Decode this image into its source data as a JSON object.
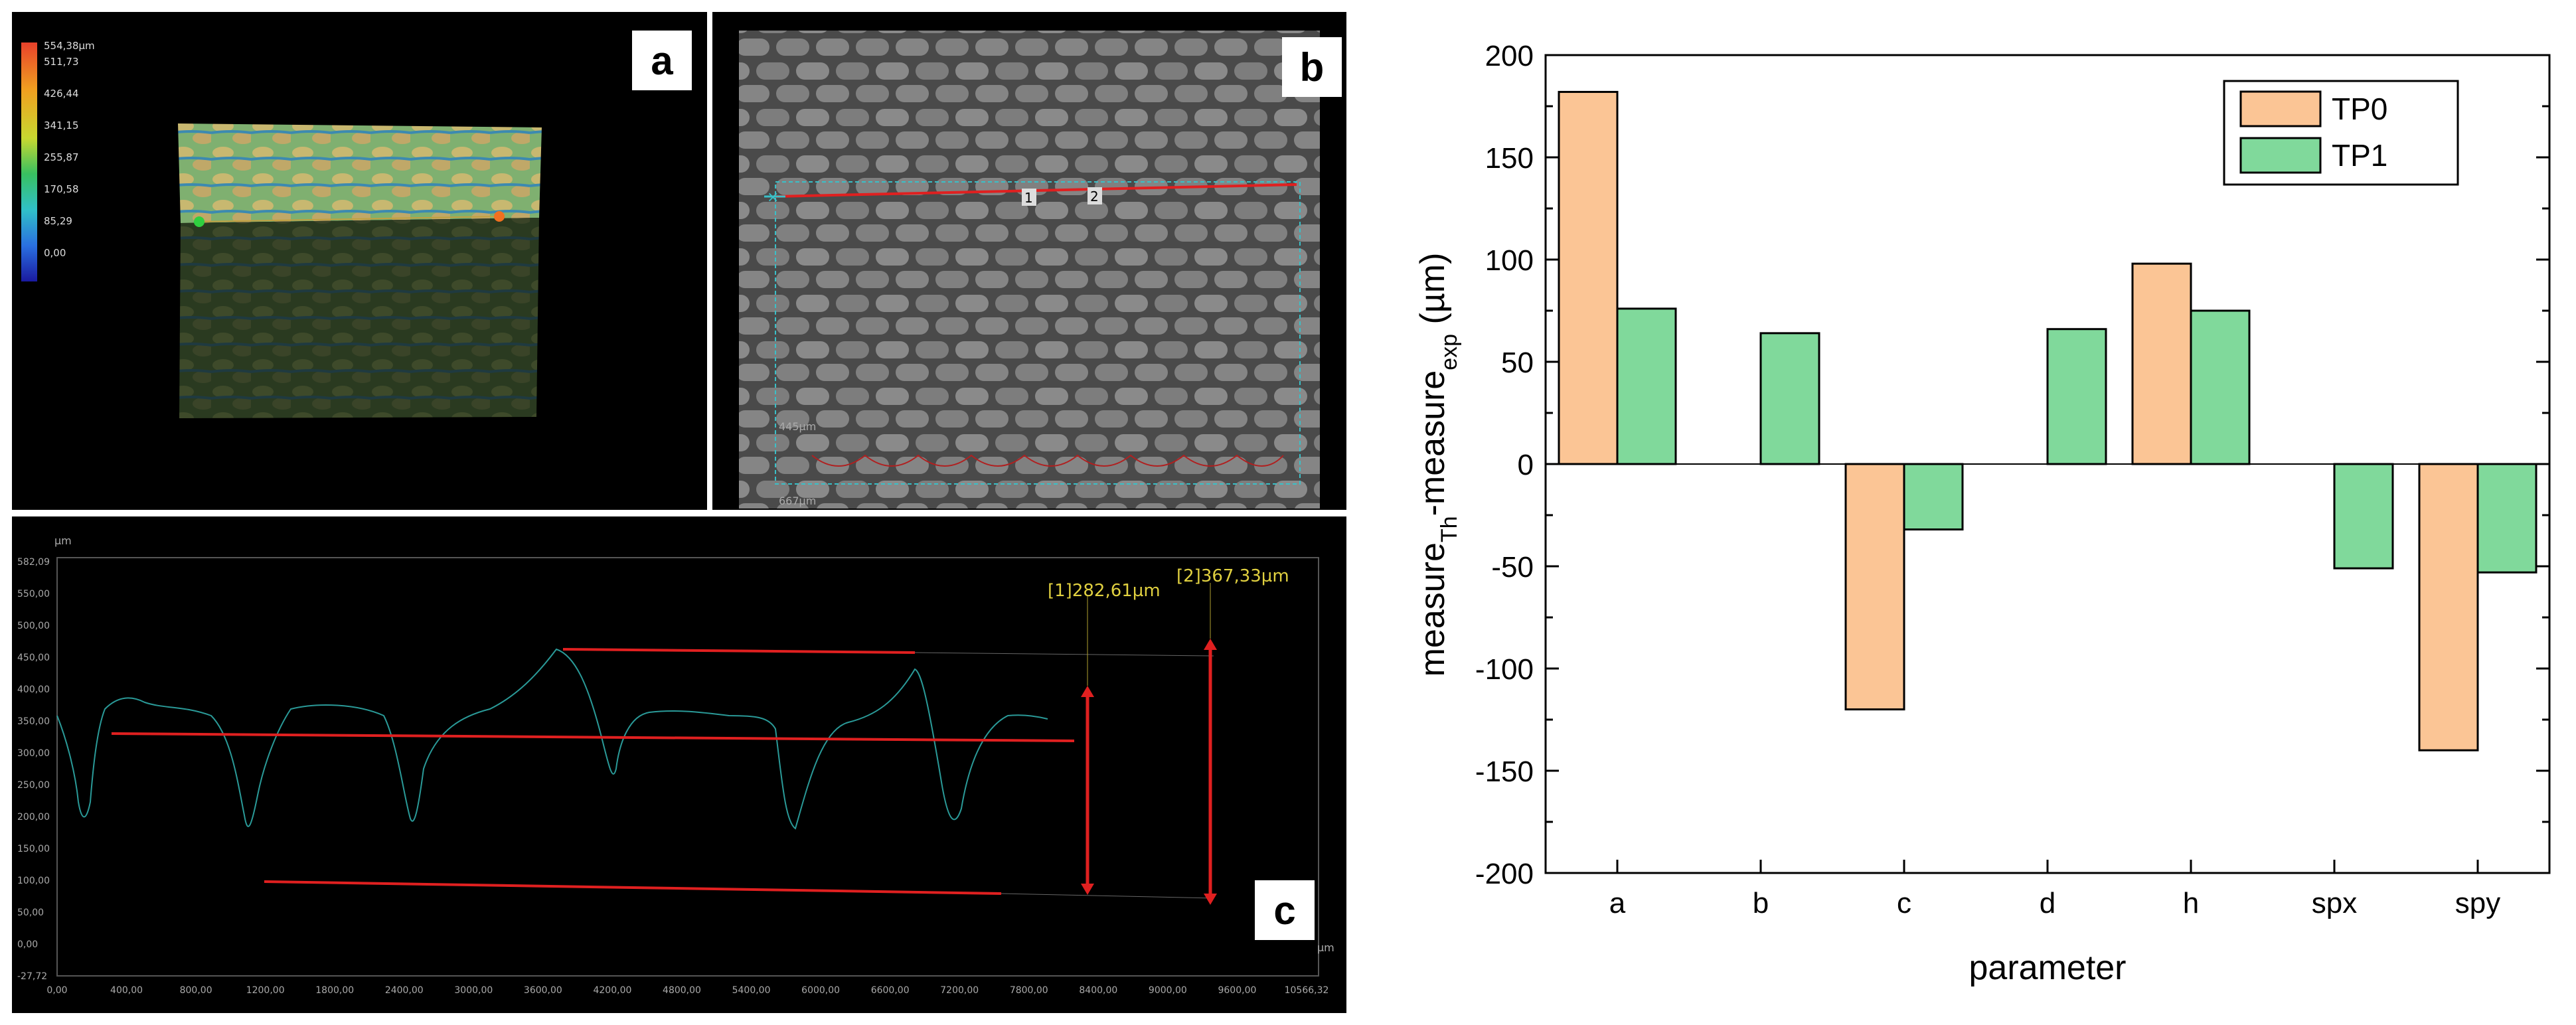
{
  "panel_a": {
    "tag": "a",
    "colorbar_labels": [
      "554,38µm",
      "511,73",
      "426,44",
      "341,15",
      "255,87",
      "170,58",
      "85,29",
      "0,00"
    ]
  },
  "panel_b": {
    "tag": "b",
    "markers": [
      "1",
      "2"
    ],
    "scale_labels": [
      "445µm",
      "667µm"
    ]
  },
  "panel_c": {
    "tag": "c",
    "y_unit": "µm",
    "x_unit": "µm",
    "y_ticks": [
      "582,09",
      "550,00",
      "500,00",
      "450,00",
      "400,00",
      "350,00",
      "300,00",
      "250,00",
      "200,00",
      "150,00",
      "100,00",
      "50,00",
      "0,00",
      "-27,72"
    ],
    "x_ticks": [
      "0,00",
      "400,00",
      "800,00",
      "1200,00",
      "1800,00",
      "2400,00",
      "3000,00",
      "3600,00",
      "4200,00",
      "4800,00",
      "5400,00",
      "6000,00",
      "6600,00",
      "7200,00",
      "7800,00",
      "8400,00",
      "9000,00",
      "9600,00",
      "10566,32"
    ],
    "measure1": "[1]282,61µm",
    "measure2": "[2]367,33µm"
  },
  "chart_data": {
    "type": "bar",
    "categories": [
      "a",
      "b",
      "c",
      "d",
      "h",
      "spx",
      "spy"
    ],
    "series": [
      {
        "name": "TP0",
        "color": "#fbc595",
        "values": [
          182,
          0,
          -120,
          0,
          98,
          0,
          -140
        ]
      },
      {
        "name": "TP1",
        "color": "#80d99b",
        "values": [
          76,
          64,
          -32,
          66,
          75,
          -51,
          -53
        ]
      }
    ],
    "title": "",
    "xlabel": "parameter",
    "ylabel_main": "measure",
    "ylabel_sub1": "Th",
    "ylabel_mid": "-measure",
    "ylabel_sub2": "exp",
    "ylabel_unit": " (µm)",
    "ylim": [
      -200,
      200
    ],
    "yticks": [
      -200,
      -150,
      -100,
      -50,
      0,
      50,
      100,
      150,
      200
    ],
    "legend_position": "top-right"
  }
}
